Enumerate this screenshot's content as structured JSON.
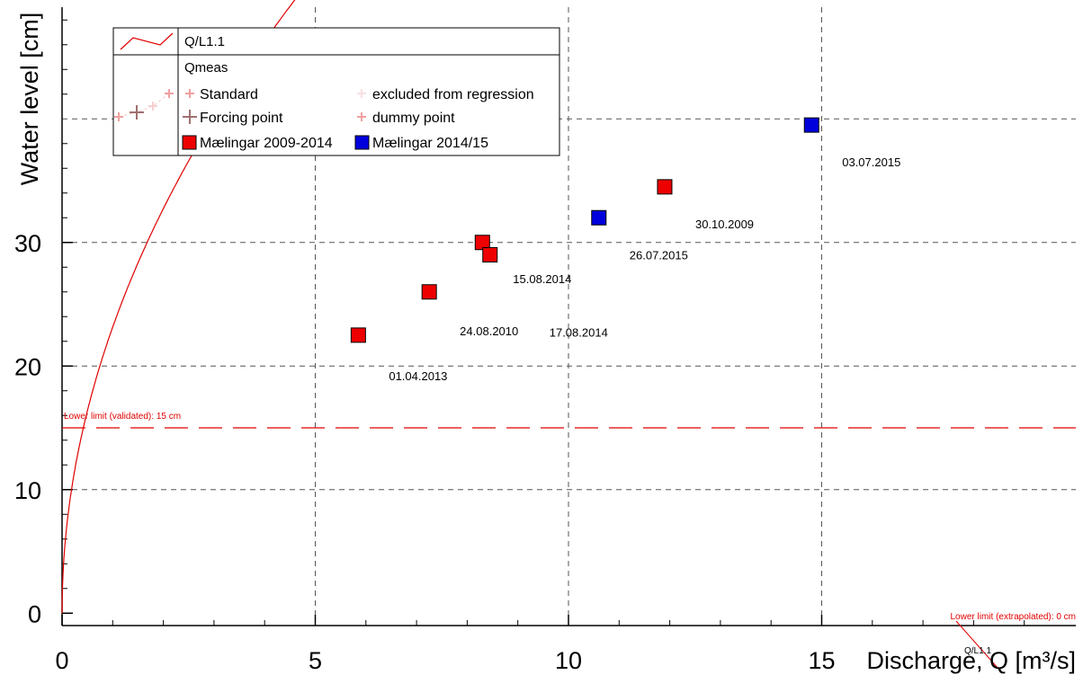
{
  "chart_data": {
    "type": "scatter",
    "xlabel": "Discharge, Q [m³/s]",
    "ylabel": "Water level [cm]",
    "xlim": [
      0,
      20
    ],
    "ylim": [
      -1,
      49
    ],
    "grid": true,
    "legend_position": "top-left",
    "x_ticks": [
      {
        "value": 0,
        "label": "0"
      },
      {
        "value": 5,
        "label": "5"
      },
      {
        "value": 10,
        "label": "10"
      },
      {
        "value": 15,
        "label": "15"
      }
    ],
    "y_ticks": [
      {
        "value": 0,
        "label": "0"
      },
      {
        "value": 10,
        "label": "10"
      },
      {
        "value": 20,
        "label": "20"
      },
      {
        "value": 30,
        "label": "30"
      }
    ],
    "y_gridlines": [
      10,
      20,
      30,
      40
    ],
    "rating_curve": {
      "name": "Q/L1.1",
      "color": "#e00000",
      "formula": "W = 23.15 * Q^0.5",
      "end_label": "Q/L1.1"
    },
    "limits": [
      {
        "value": 15,
        "label": "Lower limit (validated): 15 cm",
        "style": "dashed",
        "color": "#e00000"
      },
      {
        "value": 0,
        "label": "Lower limit (extrapolated): 0 cm",
        "style": "solid",
        "color": "#e00000"
      }
    ],
    "series": [
      {
        "name": "Mælingar 2009-2014",
        "color": "#ee0000",
        "points": [
          {
            "x": 5.85,
            "y": 22.5,
            "label": "01.04.2013"
          },
          {
            "x": 7.25,
            "y": 26.0,
            "label": "24.08.2010"
          },
          {
            "x": 8.3,
            "y": 30.0,
            "label": "15.08.2014"
          },
          {
            "x": 8.45,
            "y": 29.0,
            "label": "17.08.2014"
          },
          {
            "x": 11.9,
            "y": 34.5,
            "label": "30.10.2009"
          }
        ]
      },
      {
        "name": "Mælingar 2014/15",
        "color": "#0000dd",
        "points": [
          {
            "x": 10.6,
            "y": 32.0,
            "label": "26.07.2015"
          },
          {
            "x": 14.8,
            "y": 39.5,
            "label": "03.07.2015"
          }
        ]
      }
    ],
    "legend": {
      "curve_label": "Q/L1.1",
      "group_label": "Qmeas",
      "standard": "Standard",
      "excluded": "excluded from regression",
      "forcing": "Forcing point",
      "dummy": "dummy point",
      "series1": "Mælingar 2009-2014",
      "series2": "Mælingar 2014/15"
    }
  }
}
